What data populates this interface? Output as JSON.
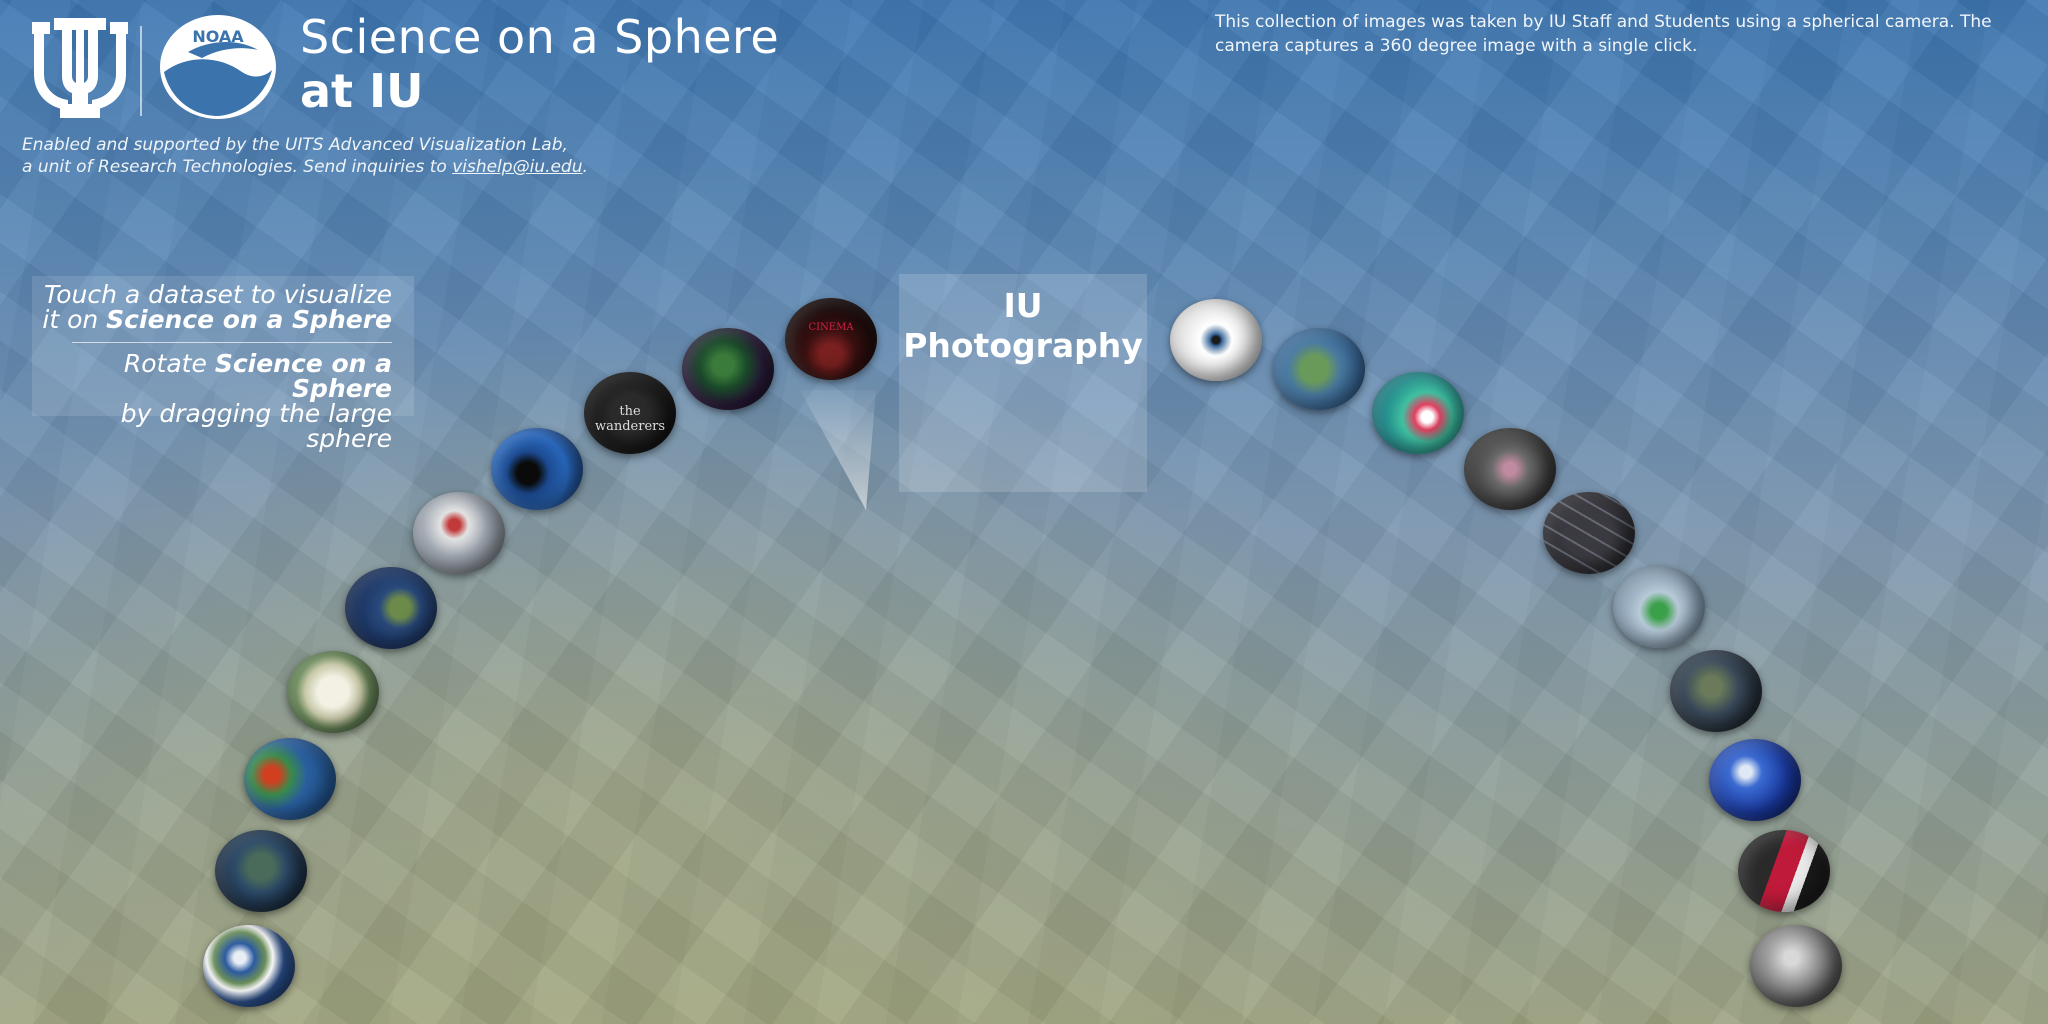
{
  "header": {
    "title_line1": "Science on a Sphere",
    "title_line2": "at IU",
    "noaa_logo_text": "NOAA",
    "credit_line1": "Enabled and supported by the UITS Advanced Visualization Lab,",
    "credit_line2_prefix": "a unit of Research Technologies. Send inquiries to",
    "credit_email": "vishelp@iu.edu",
    "credit_line2_suffix": "."
  },
  "collection_description": "This collection of images was taken by IU Staff and Students using a spherical camera. The camera captures a 360 degree image with a single click.",
  "instructions": {
    "line1": "Touch a dataset to visualize",
    "line2_prefix": "it on",
    "line2_bold": "Science on a Sphere",
    "line3_prefix": "Rotate",
    "line3_bold": "Science on a Sphere",
    "line4": "by dragging the large sphere"
  },
  "category": {
    "line1": "IU",
    "line2": "Photography"
  },
  "datasets_left_arc": [
    {
      "icon": "earth-clouds-globe-icon"
    },
    {
      "icon": "earth-night-globe-icon"
    },
    {
      "icon": "weather-map-globe-icon"
    },
    {
      "icon": "ancient-earth-globe-icon"
    },
    {
      "icon": "earth-day-globe-icon"
    },
    {
      "icon": "arctic-temperature-globe-icon"
    },
    {
      "icon": "ocean-bathymetry-globe-icon"
    },
    {
      "icon": "the-wanderers-globe-icon",
      "label": "the wanderers"
    },
    {
      "icon": "aurora-globe-icon"
    },
    {
      "icon": "cinema-theater-globe-icon",
      "label": "CINEMA"
    }
  ],
  "datasets_right_arc": [
    {
      "icon": "eye-globe-icon"
    },
    {
      "icon": "pangaea-globe-icon"
    },
    {
      "icon": "hurricane-globe-icon"
    },
    {
      "icon": "flight-paths-globe-icon"
    },
    {
      "icon": "grid-globe-icon"
    },
    {
      "icon": "ice-sheet-globe-icon"
    },
    {
      "icon": "earth-lines-globe-icon"
    },
    {
      "icon": "blue-marble-globe-icon"
    },
    {
      "icon": "photo-collage-globe-icon"
    },
    {
      "icon": "moon-globe-icon"
    }
  ],
  "colors": {
    "top_blue": "#3d77b3",
    "bottom_olive": "#9ea483",
    "text": "#ffffff"
  }
}
